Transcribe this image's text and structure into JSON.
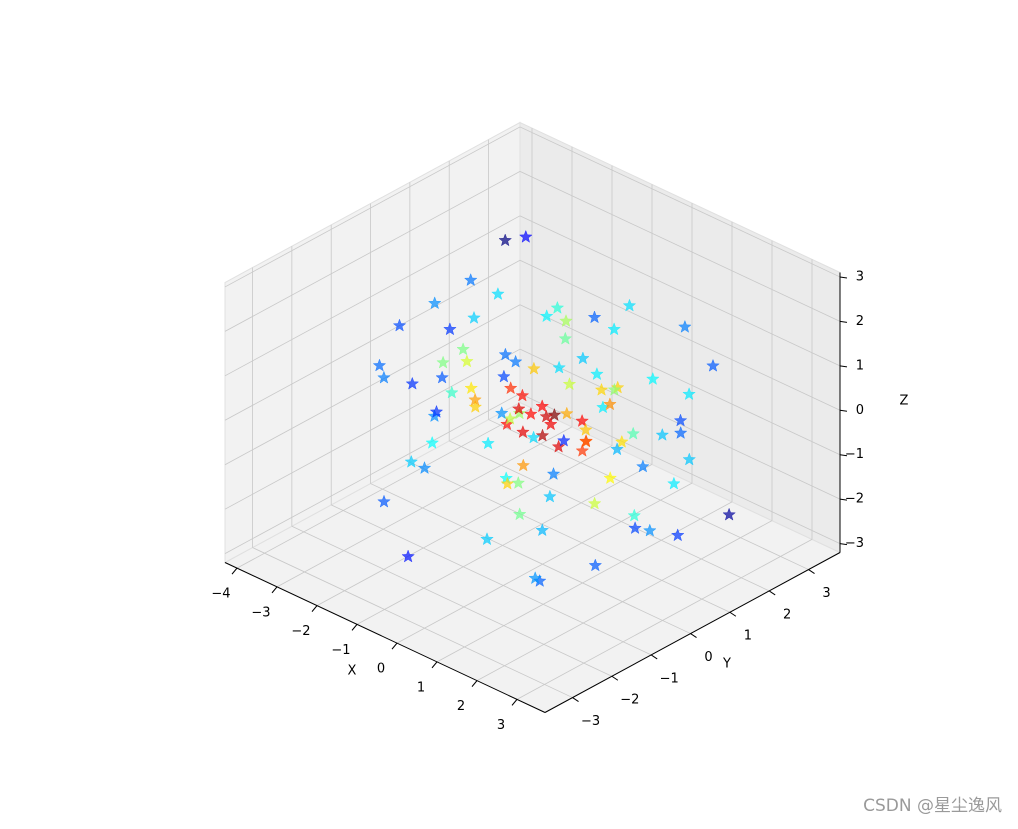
{
  "chart_data": {
    "type": "scatter3d",
    "marker": "*",
    "colormap": "jet",
    "alpha": 0.7,
    "xlabel": "X",
    "ylabel": "Y",
    "zlabel": "Z",
    "xlim": [
      -4.3,
      3.7
    ],
    "ylim": [
      -3.7,
      3.8
    ],
    "zlim": [
      -3.2,
      3.1
    ],
    "xticks": [
      {
        "value": -4,
        "label": "−4"
      },
      {
        "value": -3,
        "label": "−3"
      },
      {
        "value": -2,
        "label": "−2"
      },
      {
        "value": -1,
        "label": "−1"
      },
      0,
      1,
      2,
      3
    ],
    "yticks": [
      {
        "value": -3,
        "label": "−3"
      },
      {
        "value": -2,
        "label": "−2"
      },
      {
        "value": -1,
        "label": "−1"
      },
      0,
      1,
      2,
      3
    ],
    "zticks": [
      {
        "value": -3,
        "label": "−3"
      },
      {
        "value": -2,
        "label": "−2"
      },
      {
        "value": -1,
        "label": "−1"
      },
      0,
      1,
      2,
      3
    ],
    "grid": true,
    "series": [
      {
        "x": [
          0.1,
          -0.3,
          0.5,
          0.2,
          -0.1,
          0.4,
          -0.6,
          0.7,
          -0.2,
          0.3,
          1.0,
          -1.1,
          0.9,
          -0.8,
          1.2,
          -1.3,
          0.6,
          -0.5,
          1.4,
          -1.5,
          0.0,
          0.8,
          -0.9,
          1.6,
          -1.7,
          1.1,
          -1.2,
          0.3,
          -0.4,
          1.9,
          -2.0,
          2.1,
          -2.2,
          1.5,
          -1.6,
          2.3,
          -2.4,
          0.9,
          -1.0,
          2.5,
          -2.6,
          1.8,
          -1.9,
          2.7,
          -2.8,
          0.2,
          -0.3,
          1.3,
          -1.4,
          2.0,
          0.5,
          -0.7,
          0.4,
          -0.2,
          0.1,
          -0.5,
          0.8,
          -0.9,
          0.6,
          -0.1,
          1.7,
          -2.1,
          2.2,
          -2.5,
          3.0,
          -3.1,
          0.7,
          -0.6,
          1.0,
          -1.8,
          0.3,
          -0.8,
          1.2,
          -1.1,
          0.0,
          2.4,
          -2.3,
          1.6,
          -1.5,
          0.5,
          -0.4,
          0.9,
          -1.2,
          1.3,
          -0.7,
          2.6,
          -2.7,
          -3.2,
          3.1,
          0.2,
          1.1,
          -0.3,
          -1.0,
          0.6,
          0.4,
          -0.9,
          1.5,
          -1.3,
          0.8,
          -0.2,
          -1.5,
          -2.9
        ],
        "y": [
          0.2,
          0.4,
          -0.3,
          -0.5,
          0.1,
          0.6,
          -0.2,
          0.3,
          -0.7,
          0.8,
          -0.4,
          0.9,
          1.1,
          -1.0,
          0.5,
          -0.6,
          1.3,
          -1.2,
          -0.1,
          0.7,
          1.5,
          -1.4,
          1.6,
          0.2,
          -0.8,
          -1.7,
          1.8,
          2.0,
          -1.9,
          0.4,
          0.9,
          -0.6,
          -1.1,
          2.2,
          1.4,
          1.0,
          -0.3,
          -2.3,
          2.4,
          -1.2,
          1.7,
          1.9,
          -2.1,
          0.3,
          0.1,
          2.6,
          -2.5,
          -0.9,
          0.5,
          2.3,
          -0.1,
          0.2,
          0.7,
          -0.4,
          -0.6,
          0.5,
          0.9,
          -0.8,
          -1.1,
          1.2,
          -1.8,
          -1.5,
          1.2,
          0.8,
          -0.5,
          0.6,
          2.8,
          -2.7,
          -2.0,
          -2.2,
          -0.2,
          1.0,
          0.6,
          -0.9,
          -3.0,
          -1.9,
          1.3,
          1.1,
          -0.3,
          3.0,
          0.4,
          -1.6,
          1.5,
          0.0,
          -0.7,
          2.1,
          -1.4,
          0.9,
          -0.8,
          -2.9,
          2.5,
          2.2,
          -2.4,
          1.6,
          -1.3,
          0.3,
          -0.5,
          1.7,
          -1.0,
          0.8,
          1.1,
          2.0
        ],
        "z": [
          0.1,
          -0.2,
          0.3,
          0.5,
          -0.4,
          -0.1,
          0.6,
          -0.5,
          0.2,
          -0.7,
          0.8,
          0.3,
          -0.6,
          0.9,
          -1.0,
          1.1,
          0.4,
          0.7,
          -1.2,
          -0.9,
          0.0,
          1.2,
          -0.3,
          1.3,
          1.0,
          -0.8,
          0.5,
          -1.1,
          1.4,
          -1.5,
          1.6,
          1.5,
          -1.3,
          0.2,
          -1.7,
          -0.9,
          1.8,
          1.0,
          -0.5,
          -1.6,
          -0.4,
          -1.0,
          1.2,
          0.7,
          -1.1,
          -0.2,
          0.6,
          2.2,
          -2.1,
          1.0,
          -0.3,
          0.2,
          -0.6,
          0.4,
          0.1,
          -0.1,
          0.3,
          0.5,
          -0.2,
          -0.8,
          -2.0,
          2.0,
          -2.2,
          0.9,
          0.5,
          -0.6,
          -1.3,
          1.9,
          2.4,
          -1.5,
          2.6,
          -2.5,
          2.3,
          1.6,
          0.4,
          1.5,
          -1.4,
          -2.3,
          2.7,
          -1.2,
          -2.8,
          2.5,
          -2.4,
          2.9,
          -2.6,
          -2.0,
          0.8,
          0.3,
          -0.7,
          1.7,
          1.4,
          -1.8,
          -2.3,
          2.1,
          -0.6,
          -1.9,
          2.3,
          1.2,
          -2.7,
          1.8,
          3.0,
          1.9
        ]
      }
    ],
    "watermark": "CSDN @星尘逸风"
  }
}
